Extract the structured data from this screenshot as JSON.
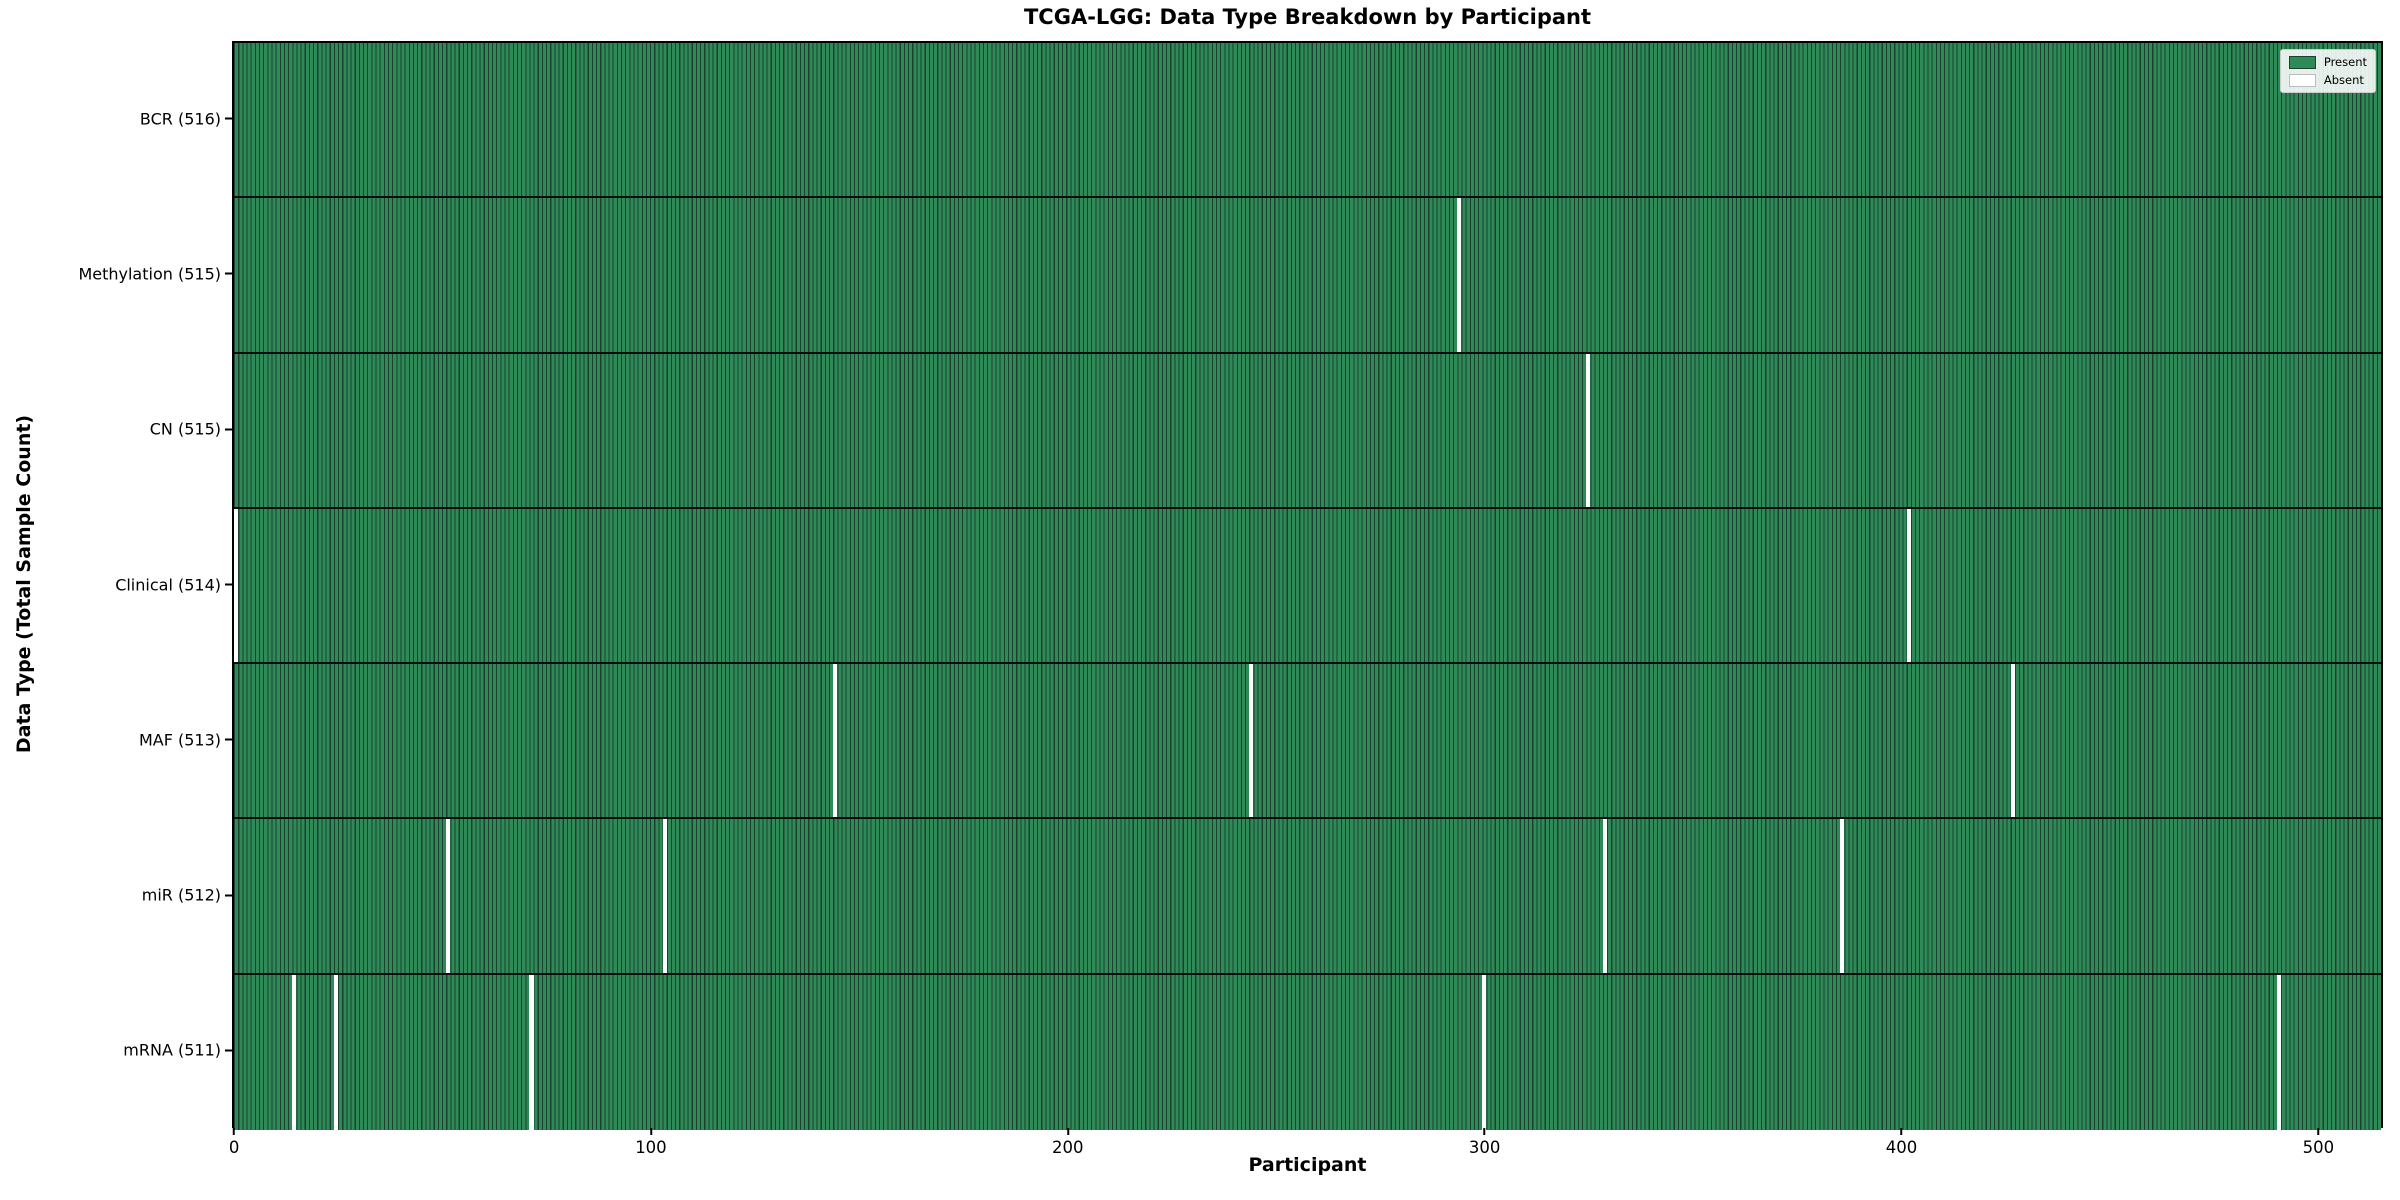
{
  "title": "TCGA-LGG: Data Type Breakdown by Participant",
  "chart_data": {
    "type": "heatmap",
    "title": "TCGA-LGG: Data Type Breakdown by Participant",
    "xlabel": "Participant",
    "ylabel": "Data Type (Total Sample Count)",
    "x_ticks": [
      0,
      100,
      200,
      300,
      400,
      500
    ],
    "xlim": [
      -0.5,
      515.5
    ],
    "n_participants": 516,
    "grid": false,
    "legend": {
      "position": "upper right",
      "entries": [
        {
          "label": "Present",
          "color": "#2e8b57"
        },
        {
          "label": "Absent",
          "color": "#ffffff"
        }
      ]
    },
    "rows": [
      {
        "label": "BCR (516)",
        "data_type": "BCR",
        "total": 516,
        "absent_participants": []
      },
      {
        "label": "Methylation (515)",
        "data_type": "Methylation",
        "total": 515,
        "absent_participants": [
          294
        ]
      },
      {
        "label": "CN (515)",
        "data_type": "CN",
        "total": 515,
        "absent_participants": [
          325
        ]
      },
      {
        "label": "Clinical (514)",
        "data_type": "Clinical",
        "total": 514,
        "absent_participants": [
          0,
          402
        ]
      },
      {
        "label": "MAF (513)",
        "data_type": "MAF",
        "total": 513,
        "absent_participants": [
          144,
          244,
          427
        ]
      },
      {
        "label": "miR (512)",
        "data_type": "miR",
        "total": 512,
        "absent_participants": [
          51,
          103,
          329,
          386
        ]
      },
      {
        "label": "mRNA (511)",
        "data_type": "mRNA",
        "total": 511,
        "absent_participants": [
          14,
          24,
          71,
          300,
          491
        ]
      }
    ],
    "colors": {
      "present": "#2e8b57",
      "absent": "#ffffff",
      "cell_edge": "#1b4030",
      "row_separator": "#0d0d0d",
      "spine": "#000000",
      "legend_border": "#cccccc",
      "background": "#ffffff"
    }
  }
}
